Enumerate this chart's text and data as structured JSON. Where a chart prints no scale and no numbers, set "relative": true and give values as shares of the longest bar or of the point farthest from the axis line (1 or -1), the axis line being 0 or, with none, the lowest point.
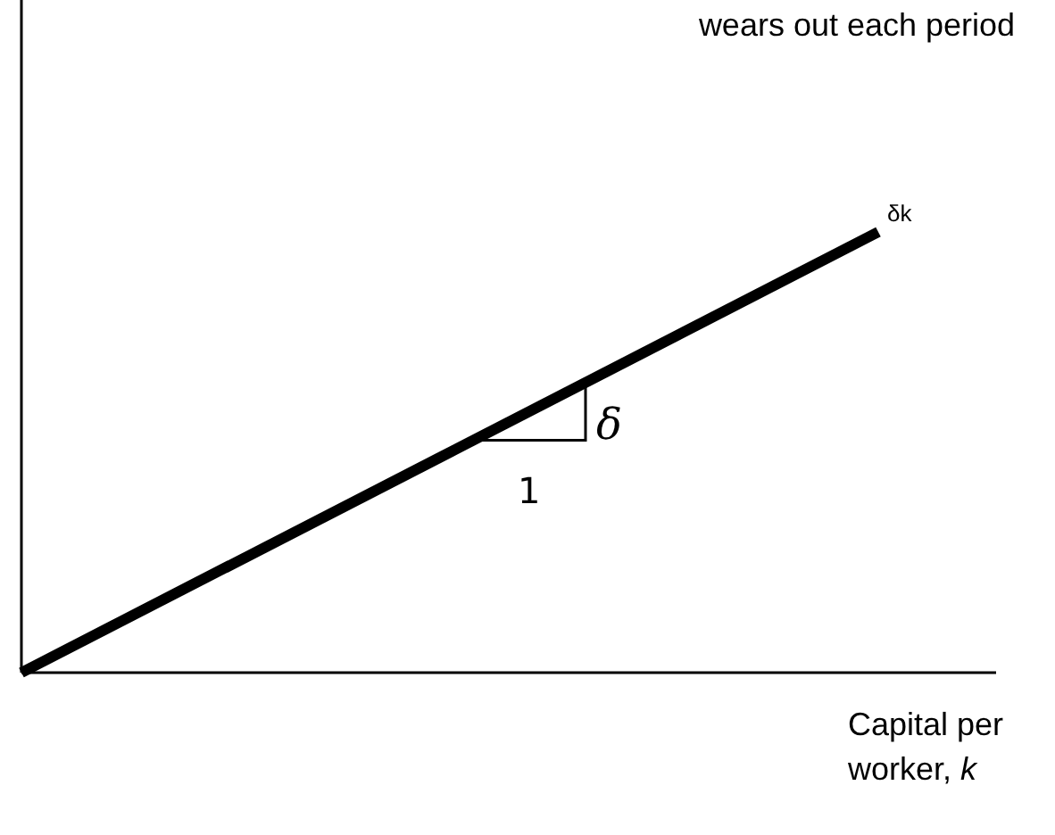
{
  "chart_data": {
    "type": "line",
    "title": "wears out each period",
    "xlabel": "Capital per worker, k",
    "categories": [
      null,
      null
    ],
    "relative": true,
    "series": [
      {
        "name": "δk",
        "color": "#000000",
        "values": [
          0,
          1
        ]
      }
    ],
    "annotations": [
      "δ",
      "1"
    ]
  }
}
